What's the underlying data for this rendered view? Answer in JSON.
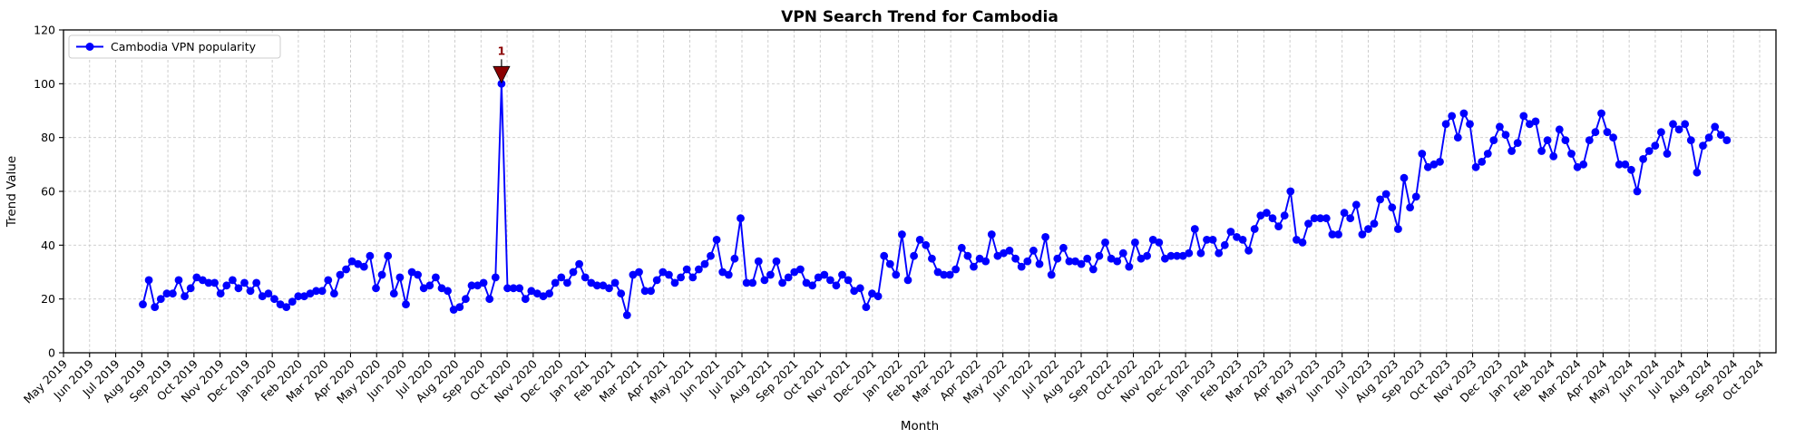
{
  "title": "VPN Search Trend for Cambodia",
  "legend": {
    "label": "Cambodia VPN popularity",
    "position": "upper left"
  },
  "axes": {
    "x_label": "Month",
    "y_label": "Trend Value",
    "y_ticks": [
      0,
      20,
      40,
      60,
      80,
      100,
      120
    ],
    "x_tick_labels": [
      "May 2019",
      "Jun 2019",
      "Jul 2019",
      "Aug 2019",
      "Sep 2019",
      "Oct 2019",
      "Nov 2019",
      "Dec 2019",
      "Jan 2020",
      "Feb 2020",
      "Mar 2020",
      "Apr 2020",
      "May 2020",
      "Jun 2020",
      "Jul 2020",
      "Aug 2020",
      "Sep 2020",
      "Oct 2020",
      "Nov 2020",
      "Dec 2020",
      "Jan 2021",
      "Feb 2021",
      "Mar 2021",
      "Apr 2021",
      "May 2021",
      "Jun 2021",
      "Jul 2021",
      "Aug 2021",
      "Sep 2021",
      "Oct 2021",
      "Nov 2021",
      "Dec 2021",
      "Jan 2022",
      "Feb 2022",
      "Mar 2022",
      "Apr 2022",
      "May 2022",
      "Jun 2022",
      "Jul 2022",
      "Aug 2022",
      "Sep 2022",
      "Oct 2022",
      "Nov 2022",
      "Dec 2022",
      "Jan 2023",
      "Feb 2023",
      "Mar 2023",
      "Apr 2023",
      "May 2023",
      "Jun 2023",
      "Jul 2023",
      "Aug 2023",
      "Sep 2023",
      "Oct 2023",
      "Nov 2023",
      "Dec 2023",
      "Jan 2024",
      "Feb 2024",
      "Mar 2024",
      "Apr 2024",
      "May 2024",
      "Jun 2024",
      "Jul 2024",
      "Aug 2024",
      "Sep 2024",
      "Oct 2024"
    ]
  },
  "colors": {
    "line": "#0000ff",
    "marker": "#0000ff",
    "grid": "#c8c8c8",
    "spine": "#000000",
    "annotation": "#8b0000",
    "legend_border": "#cccccc",
    "background": "#ffffff"
  },
  "chart_data": {
    "type": "line",
    "title": "VPN Search Trend for Cambodia",
    "xlabel": "Month",
    "ylabel": "Trend Value",
    "ylim": [
      0,
      120
    ],
    "x_range": [
      "May 2019",
      "Oct 2024"
    ],
    "grid": true,
    "legend_position": "upper left",
    "marker": "circle",
    "frequency": "weekly",
    "series": [
      {
        "name": "Cambodia VPN popularity",
        "start_date": "2019-08-04",
        "values": [
          18,
          27,
          17,
          20,
          22,
          22,
          27,
          21,
          24,
          28,
          27,
          26,
          26,
          22,
          25,
          27,
          24,
          26,
          23,
          26,
          21,
          22,
          20,
          18,
          17,
          19,
          21,
          21,
          22,
          23,
          23,
          27,
          22,
          29,
          31,
          34,
          33,
          32,
          36,
          24,
          29,
          36,
          22,
          28,
          18,
          30,
          29,
          24,
          25,
          28,
          24,
          23,
          16,
          17,
          20,
          25,
          25,
          26,
          20,
          28,
          100,
          24,
          24,
          24,
          20,
          23,
          22,
          21,
          22,
          26,
          28,
          26,
          30,
          33,
          28,
          26,
          25,
          25,
          24,
          26,
          22,
          14,
          29,
          30,
          23,
          23,
          27,
          30,
          29,
          26,
          28,
          31,
          28,
          31,
          33,
          36,
          42,
          30,
          29,
          35,
          50,
          26,
          26,
          34,
          27,
          29,
          34,
          26,
          28,
          30,
          31,
          26,
          25,
          28,
          29,
          27,
          25,
          29,
          27,
          23,
          24,
          17,
          22,
          21,
          36,
          33,
          29,
          44,
          27,
          36,
          42,
          40,
          35,
          30,
          29,
          29,
          31,
          39,
          36,
          32,
          35,
          34,
          44,
          36,
          37,
          38,
          35,
          32,
          34,
          38,
          33,
          43,
          29,
          35,
          39,
          34,
          34,
          33,
          35,
          31,
          36,
          41,
          35,
          34,
          37,
          32,
          41,
          35,
          36,
          42,
          41,
          35,
          36,
          36,
          36,
          37,
          46,
          37,
          42,
          42,
          37,
          40,
          45,
          43,
          42,
          38,
          46,
          51,
          52,
          50,
          47,
          51,
          60,
          42,
          41,
          48,
          50,
          50,
          50,
          44,
          44,
          52,
          50,
          55,
          44,
          46,
          48,
          57,
          59,
          54,
          46,
          65,
          54,
          58,
          74,
          69,
          70,
          71,
          85,
          88,
          80,
          89,
          85,
          69,
          71,
          74,
          79,
          84,
          81,
          75,
          78,
          88,
          85,
          86,
          75,
          79,
          73,
          83,
          79,
          74,
          69,
          70,
          79,
          82,
          89,
          82,
          80,
          70,
          70,
          68,
          60,
          72,
          75,
          77,
          82,
          74,
          85,
          83,
          85,
          79,
          67,
          77,
          80,
          84,
          81,
          79
        ]
      }
    ],
    "annotations": [
      {
        "label": "1",
        "point_index": 60,
        "value": 100,
        "marker": "triangle-down",
        "color": "#8b0000"
      }
    ]
  }
}
